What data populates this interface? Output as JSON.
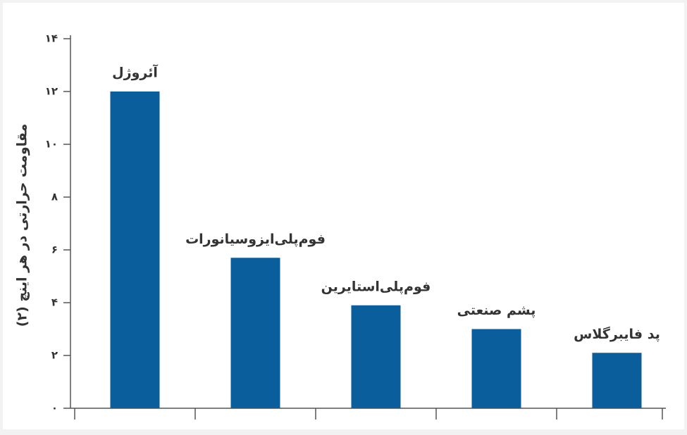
{
  "chart_data": {
    "type": "bar",
    "y_label": "مقاومت حرارتی در هر اینچ (۲)",
    "categories": [
      "آئروژل",
      "فوم‌پلی‌ایزوسیانورات",
      "فوم‌پلی‌استایرین",
      "پشم صنعتی",
      "پد فایبرگلاس"
    ],
    "values": [
      12,
      5.7,
      3.9,
      3,
      2.1
    ],
    "color": "#0b5e9c",
    "ylim": [
      0,
      14
    ],
    "yticks": [
      {
        "value": 0,
        "label": "۰"
      },
      {
        "value": 2,
        "label": "۲"
      },
      {
        "value": 4,
        "label": "۴"
      },
      {
        "value": 6,
        "label": "۶"
      },
      {
        "value": 8,
        "label": "۸"
      },
      {
        "value": 10,
        "label": "۱۰"
      },
      {
        "value": 12,
        "label": "۱۲"
      },
      {
        "value": 14,
        "label": "۱۴"
      }
    ],
    "grid": false
  }
}
